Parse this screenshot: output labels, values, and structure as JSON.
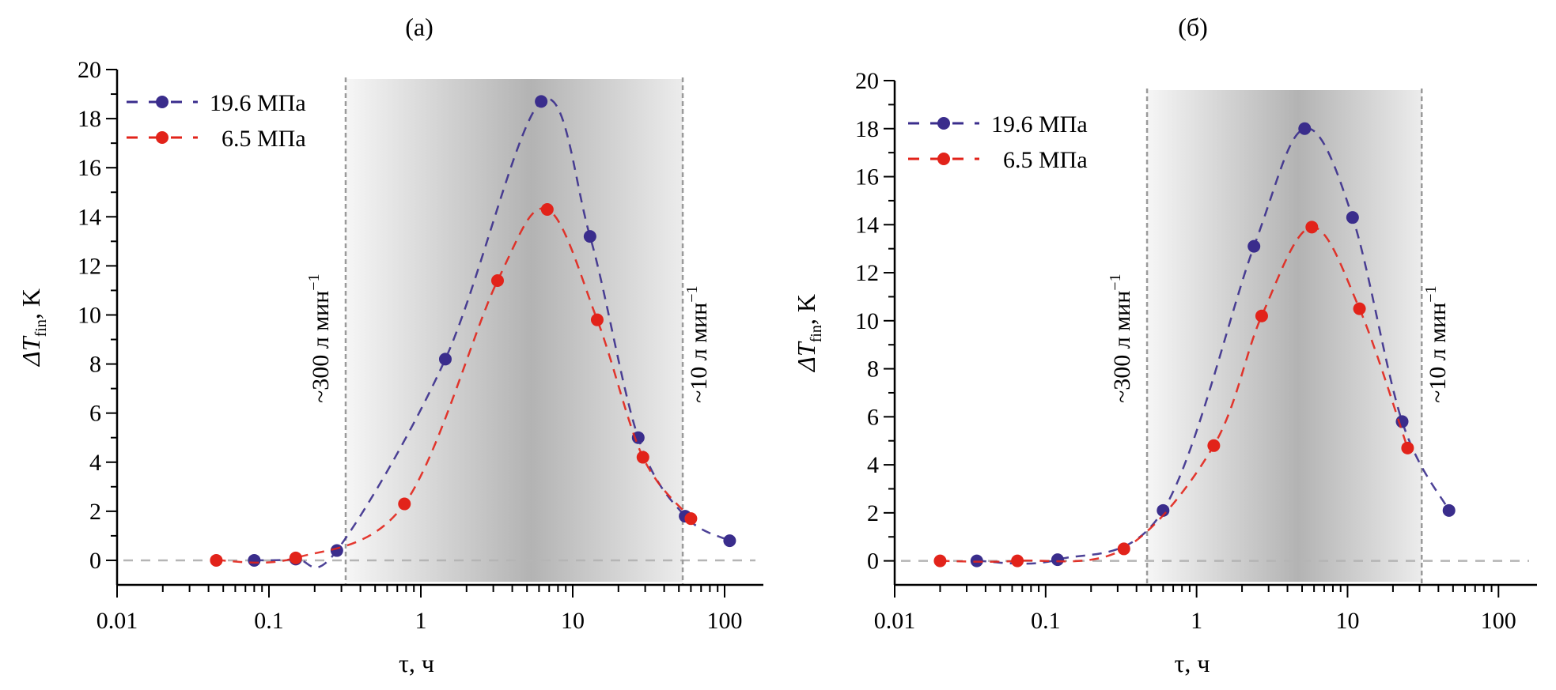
{
  "chart_data": [
    {
      "type": "scatter",
      "panel_label": "(a)",
      "xscale": "log",
      "xlabel": "τ, ч",
      "ylabel_main": "ΔT",
      "ylabel_sub": "fin",
      "ylabel_unit": ", K",
      "xlim": [
        0.01,
        180
      ],
      "ylim": [
        -1,
        20
      ],
      "xticks": [
        0.01,
        0.1,
        1,
        10,
        100
      ],
      "xtick_labels": [
        "0.01",
        "0.1",
        "1",
        "10",
        "100"
      ],
      "yticks": [
        0,
        2,
        4,
        6,
        8,
        10,
        12,
        14,
        16,
        18,
        20
      ],
      "ytick_labels": [
        "0",
        "2",
        "4",
        "6",
        "8",
        "10",
        "12",
        "14",
        "16",
        "18",
        "20"
      ],
      "legend_position": "top-left",
      "shaded_region": [
        0.32,
        53
      ],
      "annotations": [
        {
          "text": "~300 л мин",
          "sup": "−1",
          "x": 0.32
        },
        {
          "text": "~10 л мин",
          "sup": "−1",
          "x": 53
        }
      ],
      "series": [
        {
          "name": "19.6 МПа",
          "color": "#3a2d8c",
          "x": [
            0.08,
            0.15,
            0.28,
            1.45,
            6.2,
            13,
            27,
            55,
            108
          ],
          "y": [
            0,
            0.05,
            0.4,
            8.2,
            18.7,
            13.2,
            5.0,
            1.8,
            0.8
          ]
        },
        {
          "name": "6.5 МПа",
          "color": "#e2231a",
          "x": [
            0.045,
            0.15,
            0.78,
            3.2,
            6.8,
            14.5,
            29,
            60
          ],
          "y": [
            0,
            0.1,
            2.3,
            11.4,
            14.3,
            9.8,
            4.2,
            1.7
          ]
        }
      ]
    },
    {
      "type": "scatter",
      "panel_label": "(б)",
      "xscale": "log",
      "xlabel": "τ, ч",
      "ylabel_main": "ΔT",
      "ylabel_sub": "fin",
      "ylabel_unit": ", K",
      "xlim": [
        0.01,
        180
      ],
      "ylim": [
        -1,
        20
      ],
      "xticks": [
        0.01,
        0.1,
        1,
        10,
        100
      ],
      "xtick_labels": [
        "0.01",
        "0.1",
        "1",
        "10",
        "100"
      ],
      "yticks": [
        0,
        2,
        4,
        6,
        8,
        10,
        12,
        14,
        16,
        18,
        20
      ],
      "ytick_labels": [
        "0",
        "2",
        "4",
        "6",
        "8",
        "10",
        "12",
        "14",
        "16",
        "18",
        "20"
      ],
      "legend_position": "top-left",
      "shaded_region": [
        0.47,
        31
      ],
      "annotations": [
        {
          "text": "~300 л мин",
          "sup": "−1",
          "x": 0.47
        },
        {
          "text": "~10 л мин",
          "sup": "−1",
          "x": 31
        }
      ],
      "series": [
        {
          "name": "19.6 МПа",
          "color": "#3a2d8c",
          "x": [
            0.035,
            0.12,
            0.6,
            2.4,
            5.2,
            10.8,
            23,
            47
          ],
          "y": [
            0,
            0.05,
            2.1,
            13.1,
            18.0,
            14.3,
            5.8,
            2.1
          ]
        },
        {
          "name": "6.5 МПа",
          "color": "#e2231a",
          "x": [
            0.02,
            0.065,
            0.33,
            1.3,
            2.7,
            5.8,
            12,
            25
          ],
          "y": [
            0,
            0,
            0.5,
            4.8,
            10.2,
            13.9,
            10.5,
            4.7
          ]
        }
      ]
    }
  ]
}
